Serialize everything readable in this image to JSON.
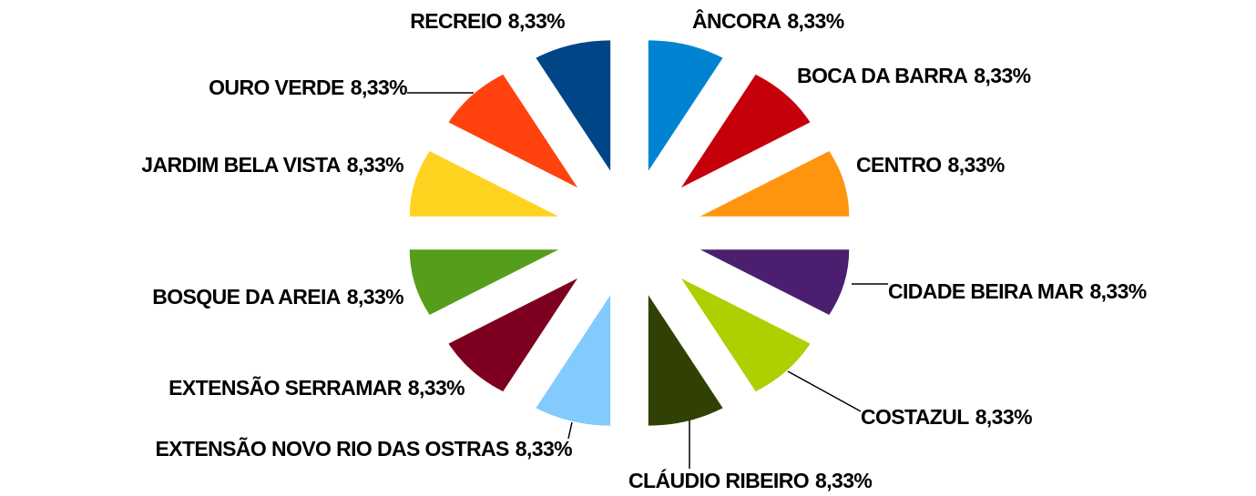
{
  "chart_data": {
    "type": "pie",
    "categories": [
      "ÂNCORA",
      "BOCA DA BARRA",
      "CENTRO",
      "CIDADE BEIRA MAR",
      "COSTAZUL",
      "CLÁUDIO RIBEIRO",
      "EXTENSÃO NOVO RIO DAS OSTRAS",
      "EXTENSÃO SERRAMAR",
      "BOSQUE DA AREIA",
      "JARDIM BELA VISTA",
      "OURO VERDE",
      "RECREIO"
    ],
    "values": [
      8.33,
      8.33,
      8.33,
      8.33,
      8.33,
      8.33,
      8.33,
      8.33,
      8.33,
      8.33,
      8.33,
      8.33
    ],
    "value_labels": [
      "8,33%",
      "8,33%",
      "8,33%",
      "8,33%",
      "8,33%",
      "8,33%",
      "8,33%",
      "8,33%",
      "8,33%",
      "8,33%",
      "8,33%",
      "8,33%"
    ],
    "colors": [
      "#0084d1",
      "#c5000b",
      "#ff950e",
      "#4b1f6f",
      "#aecf00",
      "#314004",
      "#83caff",
      "#7e0021",
      "#579d1c",
      "#ffd320",
      "#ff420e",
      "#004586"
    ]
  }
}
